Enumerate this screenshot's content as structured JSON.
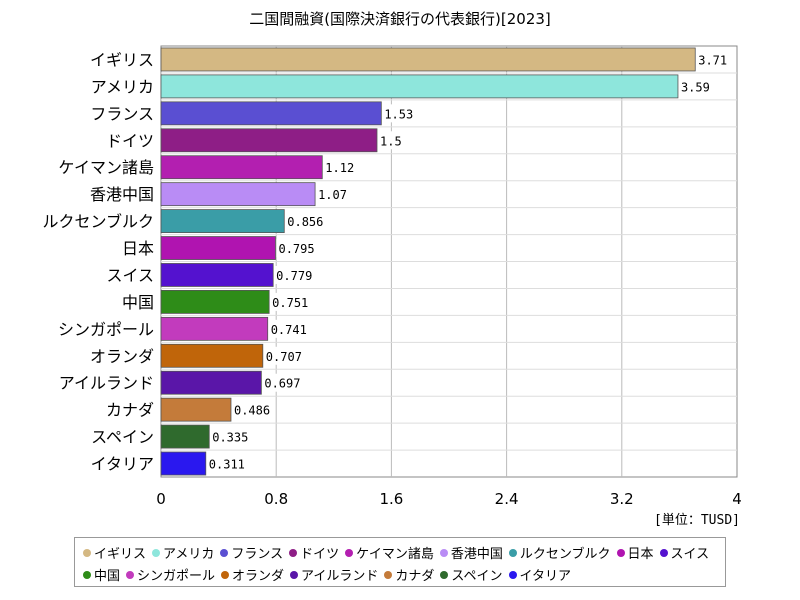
{
  "chart_data": {
    "type": "bar",
    "orientation": "horizontal",
    "title": "二国間融資(国際決済銀行の代表銀行)[2023]",
    "unit_label": "[単位：TUSD]",
    "xlim": [
      0,
      4
    ],
    "x_ticks": [
      "0",
      "0.8",
      "1.6",
      "2.4",
      "3.2",
      "4"
    ],
    "grid": true,
    "legend_position": "bottom",
    "categories": [
      "イギリス",
      "アメリカ",
      "フランス",
      "ドイツ",
      "ケイマン諸島",
      "香港中国",
      "ルクセンブルク",
      "日本",
      "スイス",
      "中国",
      "シンガポール",
      "オランダ",
      "アイルランド",
      "カナダ",
      "スペイン",
      "イタリア"
    ],
    "values": [
      3.71,
      3.59,
      1.53,
      1.5,
      1.12,
      1.07,
      0.856,
      0.795,
      0.779,
      0.751,
      0.741,
      0.707,
      0.697,
      0.486,
      0.335,
      0.311
    ],
    "value_labels": [
      "3.71",
      "3.59",
      "1.53",
      "1.5",
      "1.12",
      "1.07",
      "0.856",
      "0.795",
      "0.779",
      "0.751",
      "0.741",
      "0.707",
      "0.697",
      "0.486",
      "0.335",
      "0.311"
    ],
    "colors": [
      "#d4b883",
      "#8ee6dc",
      "#5a4fd2",
      "#8e1e86",
      "#b31fb0",
      "#b98cf5",
      "#3a9da7",
      "#b014b0",
      "#5412cf",
      "#2e8c18",
      "#c23bbd",
      "#c0650a",
      "#5a16a8",
      "#c47b3a",
      "#2f6a2d",
      "#2a18ef"
    ]
  }
}
